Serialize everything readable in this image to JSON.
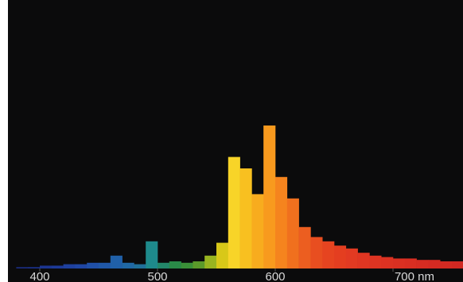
{
  "chart_data": {
    "type": "histogram",
    "bins": [
      380,
      390,
      400,
      410,
      420,
      430,
      440,
      450,
      460,
      470,
      480,
      490,
      500,
      510,
      520,
      530,
      540,
      550,
      560,
      570,
      580,
      590,
      600,
      610,
      620,
      630,
      640,
      650,
      660,
      670,
      680,
      690,
      700,
      710,
      720,
      730,
      740,
      750,
      760
    ],
    "counts": [
      1,
      1,
      2,
      2,
      3,
      3,
      4,
      4,
      9,
      4,
      3,
      19,
      4,
      5,
      4,
      5,
      9,
      18,
      78,
      70,
      52,
      100,
      64,
      49,
      29,
      22,
      19,
      16,
      14,
      11,
      9,
      8,
      7,
      7,
      6,
      6,
      5,
      5
    ],
    "colors": [
      "#1a2a7a",
      "#1a2f85",
      "#1c3590",
      "#1d3a98",
      "#1e409e",
      "#1f46a4",
      "#2050a8",
      "#2058a8",
      "#2060a8",
      "#2068a4",
      "#20709a",
      "#1e8a8c",
      "#23876a",
      "#2a8a48",
      "#3a9038",
      "#5a9a2a",
      "#98b420",
      "#d8c818",
      "#f8d428",
      "#f8c020",
      "#f8ac1e",
      "#f89a1e",
      "#f5841e",
      "#f0701e",
      "#ec5e20",
      "#e84e20",
      "#e64420",
      "#e43e20",
      "#e23a22",
      "#e03622",
      "#de3422",
      "#dc3222",
      "#da3022",
      "#d82e22",
      "#d62c22",
      "#d42a22",
      "#d22a22",
      "#d02822"
    ],
    "xlim": [
      375,
      760
    ],
    "ylim": [
      0,
      100
    ],
    "xticks": [
      400,
      500,
      600,
      {
        "value": 700,
        "label": "700 nm"
      }
    ]
  }
}
